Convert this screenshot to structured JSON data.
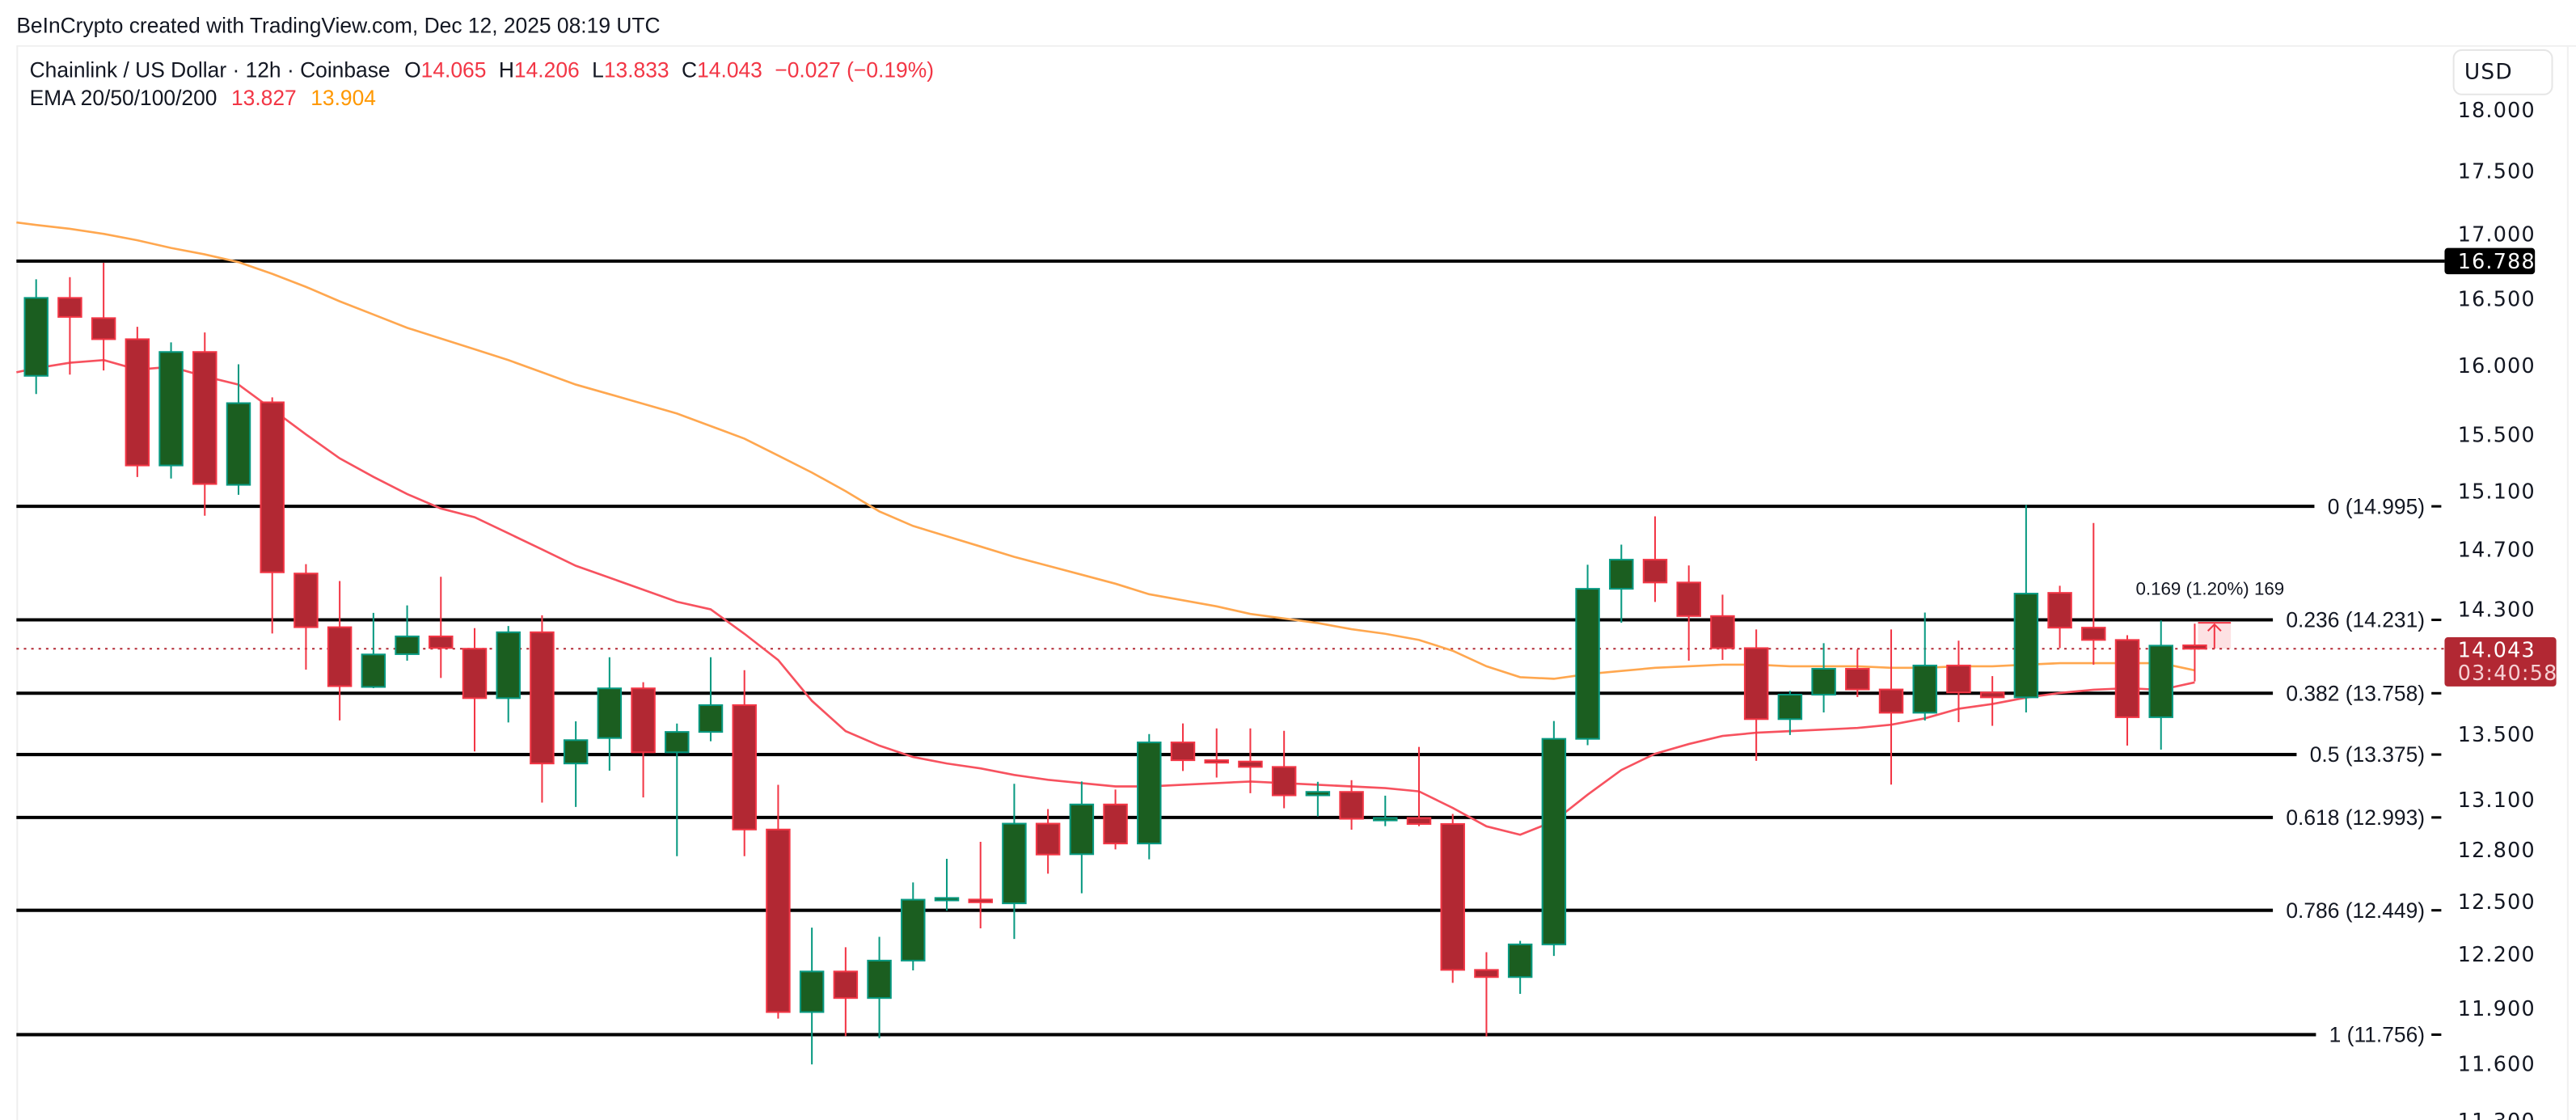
{
  "watermark": "BeInCrypto created with TradingView.com, Dec 12, 2025 08:19 UTC",
  "legend": {
    "symbol": "Chainlink / US Dollar · 12h · Coinbase",
    "o_label": "O",
    "o": "14.065",
    "h_label": "H",
    "h": "14.206",
    "l_label": "L",
    "l": "13.833",
    "c_label": "C",
    "c": "14.043",
    "change": "−0.027 (−0.19%)",
    "ema_label": "EMA 20/50/100/200",
    "ema20": "13.827",
    "ema50": "13.904"
  },
  "currency_button": "USD",
  "price_label": {
    "value": "14.043",
    "countdown": "03:40:58"
  },
  "level_label": "16.788",
  "measure_label": "0.169 (1.20%) 169",
  "colors": {
    "up_body": "#1b5e20",
    "up_border": "#089981",
    "down_body": "#b22833",
    "down_border": "#f23645",
    "ema20": "#f7525f",
    "ema50": "#ffa74f",
    "text_down": "#f23645",
    "ema50_text": "#ff9800"
  },
  "chart_data": {
    "type": "candlestick",
    "scale": "log",
    "ylim": [
      11.3,
      18.0
    ],
    "grid": false,
    "y_ticks": [
      "18.000",
      "17.500",
      "17.000",
      "16.500",
      "16.000",
      "15.500",
      "15.100",
      "14.700",
      "14.300",
      "13.500",
      "13.100",
      "12.800",
      "12.500",
      "12.200",
      "11.900",
      "11.600",
      "11.300"
    ],
    "ohlc": [
      [
        15.924,
        16.648,
        15.791,
        16.506
      ],
      [
        16.506,
        16.664,
        15.933,
        16.362
      ],
      [
        16.353,
        16.775,
        15.963,
        16.195
      ],
      [
        16.195,
        16.288,
        15.199,
        15.28
      ],
      [
        15.28,
        16.171,
        15.188,
        16.1
      ],
      [
        16.1,
        16.245,
        14.93,
        15.15
      ],
      [
        15.144,
        16.009,
        15.075,
        15.725
      ],
      [
        15.731,
        15.767,
        14.142,
        14.546
      ],
      [
        14.538,
        14.601,
        13.908,
        14.183
      ],
      [
        14.183,
        14.488,
        13.587,
        13.803
      ],
      [
        13.798,
        14.277,
        13.79,
        14.006
      ],
      [
        14.008,
        14.326,
        13.966,
        14.123
      ],
      [
        14.123,
        14.516,
        13.855,
        14.048
      ],
      [
        14.043,
        14.177,
        13.394,
        13.727
      ],
      [
        13.727,
        14.191,
        13.574,
        14.15
      ],
      [
        14.15,
        14.261,
        13.082,
        13.32
      ],
      [
        13.32,
        13.581,
        13.056,
        13.464
      ],
      [
        13.477,
        13.988,
        13.276,
        13.789
      ],
      [
        13.789,
        13.828,
        13.113,
        13.389
      ],
      [
        13.389,
        13.567,
        12.763,
        13.515
      ],
      [
        13.515,
        13.988,
        13.457,
        13.683
      ],
      [
        13.683,
        13.905,
        12.763,
        12.921
      ],
      [
        12.921,
        13.19,
        11.843,
        11.879
      ],
      [
        11.879,
        12.35,
        11.596,
        12.103
      ],
      [
        12.103,
        12.239,
        11.748,
        11.956
      ],
      [
        11.956,
        12.298,
        11.737,
        12.164
      ],
      [
        12.164,
        12.61,
        12.109,
        12.51
      ],
      [
        12.515,
        12.748,
        12.447,
        12.52
      ],
      [
        12.511,
        12.848,
        12.346,
        12.495
      ],
      [
        12.489,
        13.196,
        12.286,
        12.956
      ],
      [
        12.956,
        13.043,
        12.661,
        12.773
      ],
      [
        12.775,
        13.21,
        12.547,
        13.071
      ],
      [
        13.071,
        13.161,
        12.803,
        12.838
      ],
      [
        12.838,
        13.502,
        12.745,
        13.45
      ],
      [
        13.45,
        13.568,
        13.274,
        13.34
      ],
      [
        13.34,
        13.537,
        13.234,
        13.332
      ],
      [
        13.332,
        13.537,
        13.139,
        13.299
      ],
      [
        13.299,
        13.522,
        13.048,
        13.126
      ],
      [
        13.126,
        13.208,
        12.999,
        13.147
      ],
      [
        13.147,
        13.218,
        12.92,
        12.985
      ],
      [
        12.985,
        13.124,
        12.941,
        12.99
      ],
      [
        12.99,
        13.422,
        12.941,
        12.954
      ],
      [
        12.954,
        13.014,
        12.04,
        12.112
      ],
      [
        12.112,
        12.211,
        11.746,
        12.072
      ],
      [
        12.072,
        12.275,
        11.979,
        12.255
      ],
      [
        12.255,
        13.583,
        12.19,
        13.472
      ],
      [
        13.472,
        14.597,
        13.433,
        14.436
      ],
      [
        14.436,
        14.733,
        14.212,
        14.631
      ],
      [
        14.631,
        14.926,
        14.349,
        14.478
      ],
      [
        14.478,
        14.592,
        13.966,
        14.256
      ],
      [
        14.256,
        14.397,
        13.971,
        14.047
      ],
      [
        14.047,
        14.168,
        13.336,
        13.595
      ],
      [
        13.595,
        13.773,
        13.496,
        13.749
      ],
      [
        13.749,
        14.079,
        13.637,
        13.914
      ],
      [
        13.914,
        14.04,
        13.734,
        13.782
      ],
      [
        13.782,
        14.168,
        13.191,
        13.635
      ],
      [
        13.635,
        14.279,
        13.586,
        13.935
      ],
      [
        13.935,
        14.095,
        13.576,
        13.763
      ],
      [
        13.763,
        13.867,
        13.553,
        13.732
      ],
      [
        13.732,
        15.004,
        13.637,
        14.404
      ],
      [
        14.409,
        14.456,
        14.047,
        14.18
      ],
      [
        14.18,
        14.88,
        13.94,
        14.1
      ],
      [
        14.1,
        14.131,
        13.43,
        13.607
      ],
      [
        13.607,
        14.227,
        13.405,
        14.063
      ],
      [
        14.065,
        14.206,
        13.833,
        14.043
      ]
    ],
    "ema20": [
      15.98,
      16.02,
      16.04,
      15.97,
      15.99,
      15.92,
      15.86,
      15.68,
      15.5,
      15.33,
      15.2,
      15.08,
      14.98,
      14.92,
      14.81,
      14.7,
      14.59,
      14.51,
      14.43,
      14.35,
      14.3,
      14.14,
      13.97,
      13.71,
      13.52,
      13.43,
      13.36,
      13.32,
      13.29,
      13.25,
      13.22,
      13.2,
      13.18,
      13.18,
      13.19,
      13.2,
      13.21,
      13.2,
      13.19,
      13.18,
      13.17,
      13.15,
      13.05,
      12.94,
      12.89,
      12.97,
      13.13,
      13.28,
      13.38,
      13.44,
      13.49,
      13.51,
      13.52,
      13.53,
      13.54,
      13.56,
      13.6,
      13.66,
      13.69,
      13.73,
      13.76,
      13.78,
      13.79,
      13.78,
      13.827
    ],
    "ema50": [
      17.07,
      17.04,
      17.0,
      16.95,
      16.89,
      16.84,
      16.78,
      16.69,
      16.59,
      16.48,
      16.38,
      16.28,
      16.2,
      16.12,
      16.04,
      15.95,
      15.86,
      15.79,
      15.72,
      15.65,
      15.56,
      15.47,
      15.35,
      15.23,
      15.1,
      14.96,
      14.86,
      14.79,
      14.72,
      14.65,
      14.59,
      14.53,
      14.47,
      14.4,
      14.36,
      14.32,
      14.27,
      14.24,
      14.21,
      14.17,
      14.14,
      14.1,
      14.03,
      13.93,
      13.86,
      13.85,
      13.88,
      13.9,
      13.92,
      13.93,
      13.94,
      13.94,
      13.93,
      13.93,
      13.93,
      13.92,
      13.92,
      13.93,
      13.93,
      13.94,
      13.95,
      13.95,
      13.95,
      13.95,
      13.904
    ],
    "horizontal_level": 16.788,
    "current_price": 14.043,
    "measure": {
      "from": 14.043,
      "to": 14.212
    },
    "fib_levels": [
      {
        "ratio": "0",
        "price": 14.995,
        "label": "0 (14.995)"
      },
      {
        "ratio": "0.236",
        "price": 14.231,
        "label": "0.236 (14.231)"
      },
      {
        "ratio": "0.382",
        "price": 13.758,
        "label": "0.382 (13.758)"
      },
      {
        "ratio": "0.5",
        "price": 13.375,
        "label": "0.5 (13.375)"
      },
      {
        "ratio": "0.618",
        "price": 12.993,
        "label": "0.618 (12.993)"
      },
      {
        "ratio": "0.786",
        "price": 12.449,
        "label": "0.786 (12.449)"
      },
      {
        "ratio": "1",
        "price": 11.756,
        "label": "1 (11.756)"
      }
    ]
  }
}
